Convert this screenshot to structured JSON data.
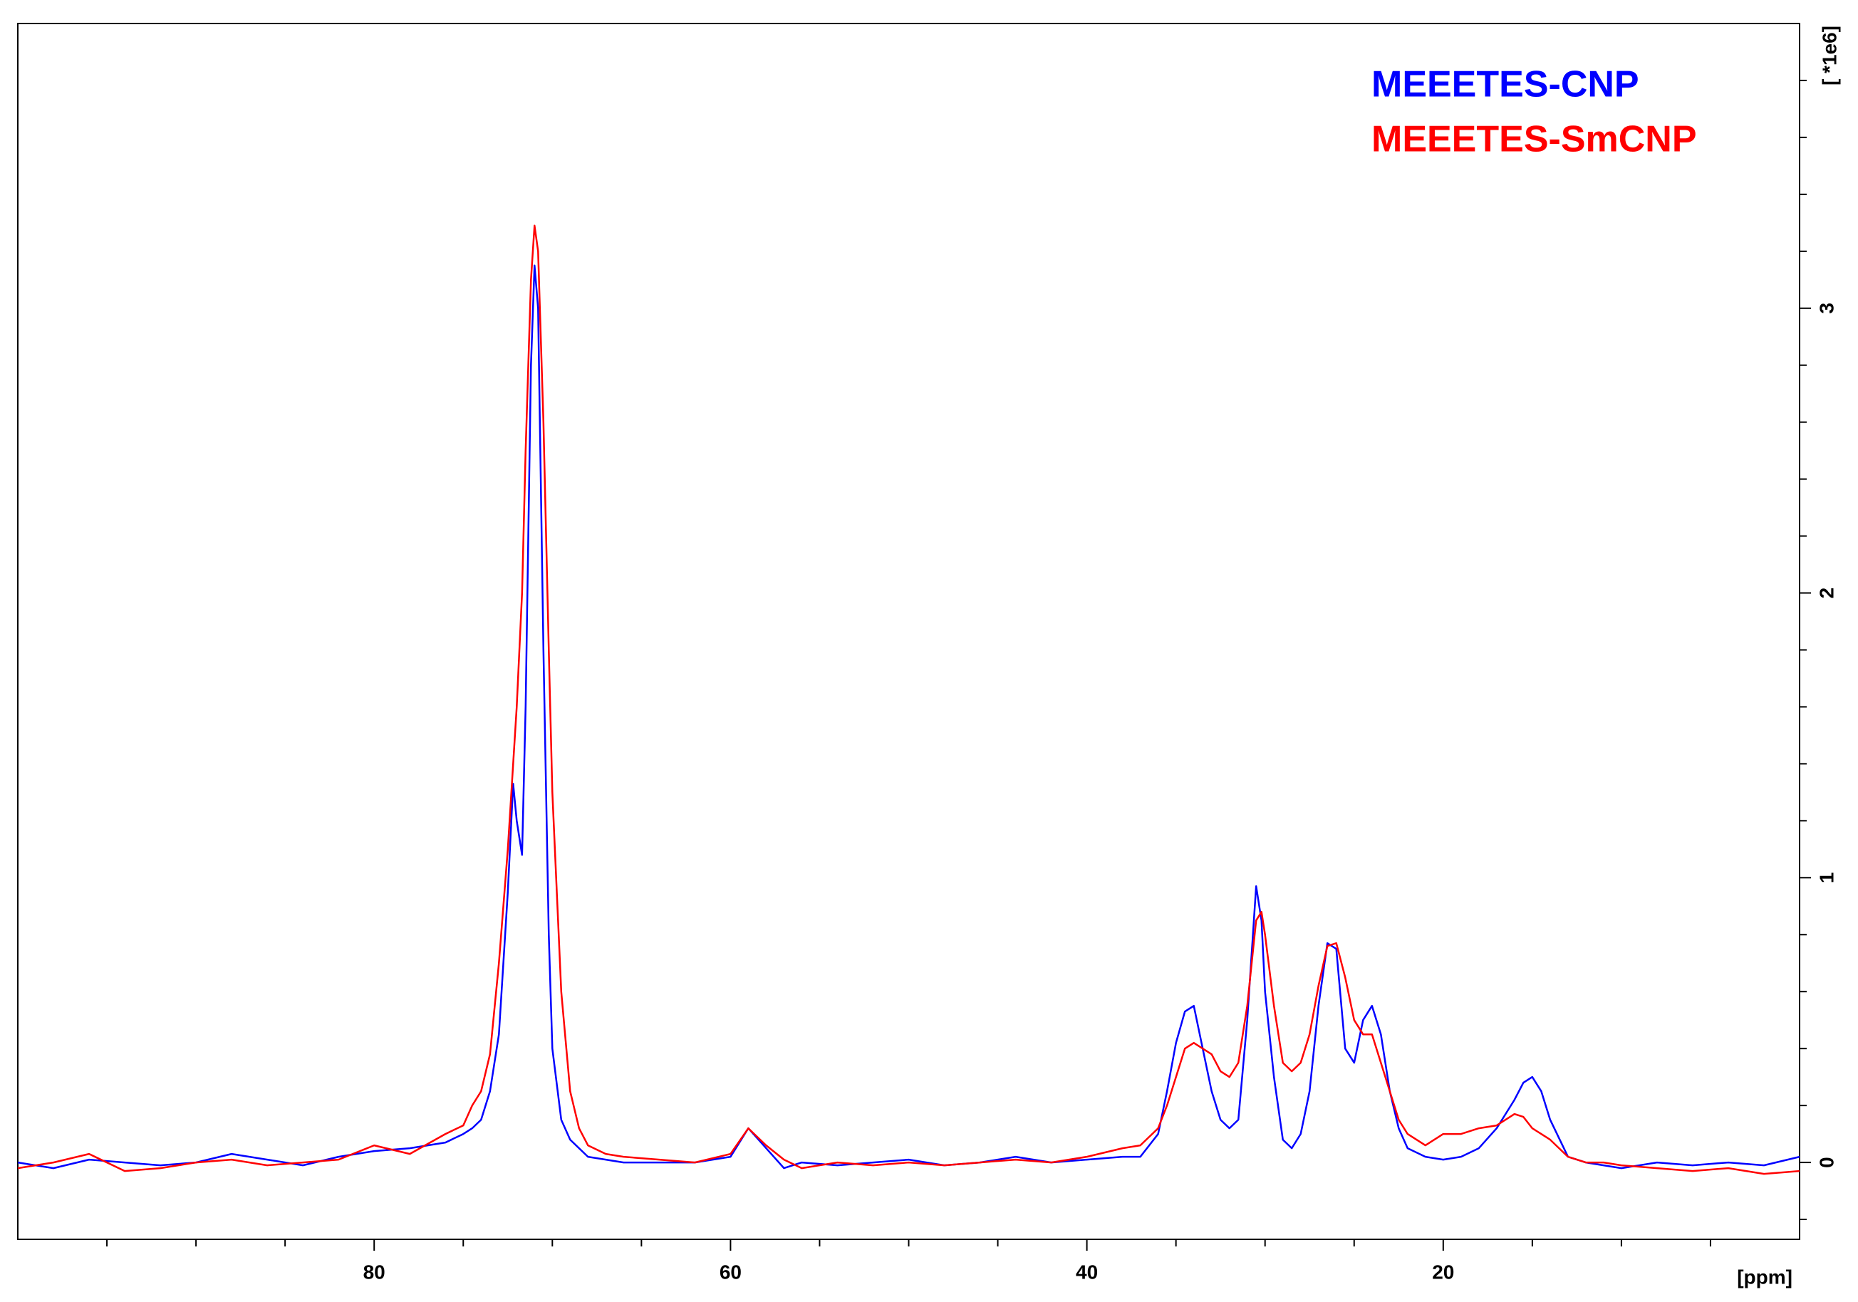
{
  "chart_data": {
    "type": "line",
    "x_label": "[ppm]",
    "y_label": "[ *1e6]",
    "xlim": [
      100,
      0
    ],
    "ylim": [
      -0.27,
      4.0
    ],
    "xticks": [
      80,
      60,
      40,
      20
    ],
    "x_minor_ticks": [
      95,
      90,
      85,
      75,
      70,
      65,
      55,
      50,
      45,
      35,
      30,
      25,
      15,
      10,
      5
    ],
    "yticks": [
      0,
      1,
      2,
      3
    ],
    "y_minor_ticks": [
      -0.2,
      0.2,
      0.4,
      0.6,
      0.8,
      1.2,
      1.4,
      1.6,
      1.8,
      2.2,
      2.4,
      2.6,
      2.8,
      3.2,
      3.4,
      3.6,
      3.8
    ],
    "legend": "top-right",
    "x": [
      100,
      98,
      96,
      94,
      92,
      90,
      88,
      86,
      84,
      82,
      80,
      78,
      76,
      75,
      74.5,
      74,
      73.5,
      73,
      72.5,
      72.2,
      72,
      71.7,
      71.5,
      71.2,
      71,
      70.8,
      70.5,
      70.2,
      70,
      69.5,
      69,
      68.5,
      68,
      67,
      66,
      64,
      62,
      60,
      59,
      58,
      57,
      56,
      54,
      52,
      50,
      48,
      46,
      44,
      42,
      40,
      38,
      37,
      36,
      35.5,
      35,
      34.5,
      34,
      33.5,
      33,
      32.5,
      32,
      31.5,
      31,
      30.5,
      30.2,
      30,
      29.5,
      29,
      28.5,
      28,
      27.5,
      27,
      26.5,
      26,
      25.5,
      25,
      24.5,
      24,
      23.5,
      23,
      22.5,
      22,
      21,
      20,
      19,
      18,
      17,
      16,
      15.5,
      15,
      14.5,
      14,
      13,
      12,
      11,
      10,
      8,
      6,
      4,
      2,
      0
    ],
    "series": [
      {
        "name": "MEEETES-CNP",
        "color": "#0000ff",
        "values": [
          0.0,
          -0.02,
          0.01,
          0.0,
          -0.01,
          0.0,
          0.03,
          0.01,
          -0.01,
          0.02,
          0.04,
          0.05,
          0.07,
          0.1,
          0.12,
          0.15,
          0.25,
          0.45,
          0.95,
          1.33,
          1.2,
          1.08,
          1.6,
          2.8,
          3.15,
          3.0,
          1.8,
          0.8,
          0.4,
          0.15,
          0.08,
          0.05,
          0.02,
          0.01,
          0.0,
          0.0,
          0.0,
          0.02,
          0.12,
          0.05,
          -0.02,
          0.0,
          -0.01,
          0.0,
          0.01,
          -0.01,
          0.0,
          0.02,
          0.0,
          0.01,
          0.02,
          0.02,
          0.1,
          0.25,
          0.42,
          0.53,
          0.55,
          0.4,
          0.25,
          0.15,
          0.12,
          0.15,
          0.5,
          0.97,
          0.85,
          0.6,
          0.3,
          0.08,
          0.05,
          0.1,
          0.25,
          0.55,
          0.77,
          0.75,
          0.4,
          0.35,
          0.5,
          0.55,
          0.45,
          0.25,
          0.12,
          0.05,
          0.02,
          0.01,
          0.02,
          0.05,
          0.12,
          0.22,
          0.28,
          0.3,
          0.25,
          0.15,
          0.02,
          0.0,
          -0.01,
          -0.02,
          0.0,
          -0.01,
          0.0,
          -0.01,
          0.02
        ]
      },
      {
        "name": "MEEETES-SmCNP",
        "color": "#ff0000",
        "values": [
          -0.02,
          0.0,
          0.03,
          -0.03,
          -0.02,
          0.0,
          0.01,
          -0.01,
          0.0,
          0.01,
          0.06,
          0.03,
          0.1,
          0.13,
          0.2,
          0.25,
          0.38,
          0.7,
          1.1,
          1.4,
          1.6,
          2.0,
          2.5,
          3.1,
          3.29,
          3.2,
          2.6,
          1.8,
          1.3,
          0.6,
          0.25,
          0.12,
          0.06,
          0.03,
          0.02,
          0.01,
          0.0,
          0.03,
          0.12,
          0.06,
          0.01,
          -0.02,
          0.0,
          -0.01,
          0.0,
          -0.01,
          0.0,
          0.01,
          0.0,
          0.02,
          0.05,
          0.06,
          0.12,
          0.2,
          0.3,
          0.4,
          0.42,
          0.4,
          0.38,
          0.32,
          0.3,
          0.35,
          0.55,
          0.85,
          0.88,
          0.8,
          0.55,
          0.35,
          0.32,
          0.35,
          0.45,
          0.62,
          0.76,
          0.77,
          0.65,
          0.5,
          0.45,
          0.45,
          0.35,
          0.25,
          0.15,
          0.1,
          0.06,
          0.1,
          0.1,
          0.12,
          0.13,
          0.17,
          0.16,
          0.12,
          0.1,
          0.08,
          0.02,
          0.0,
          0.0,
          -0.01,
          -0.02,
          -0.03,
          -0.02,
          -0.04,
          -0.03
        ]
      }
    ]
  }
}
